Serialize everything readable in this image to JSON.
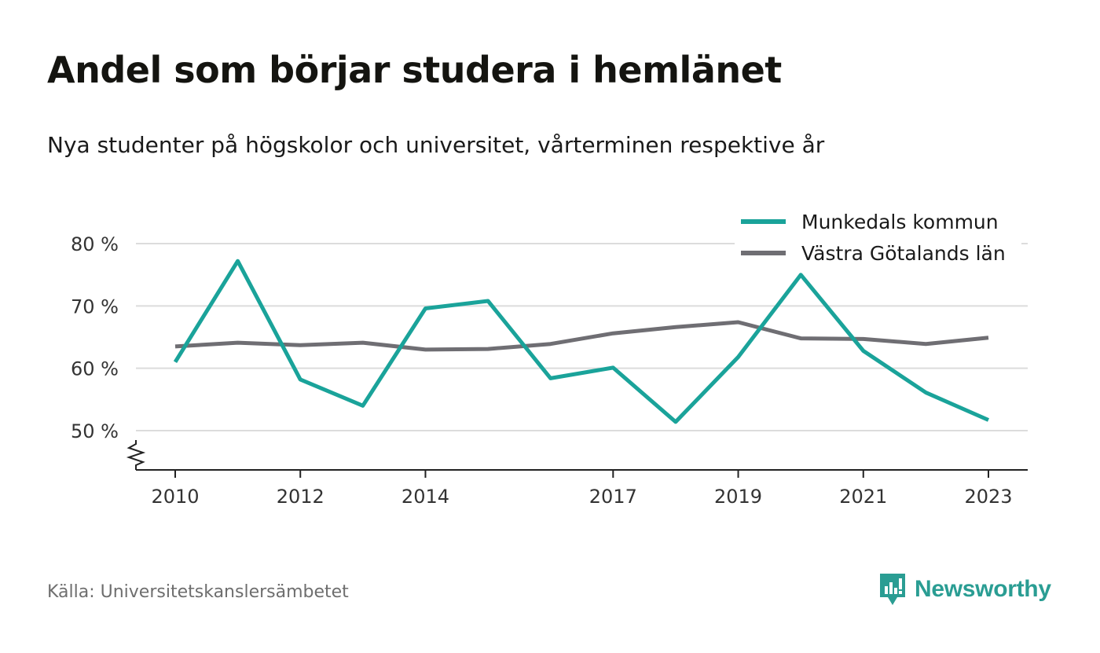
{
  "header": {
    "title": "Andel som börjar studera i hemlänet",
    "subtitle": "Nya studenter på högskolor och universitet, vårterminen respektive år"
  },
  "footer": {
    "source": "Källa: Universitetskanslersämbetet",
    "brand": "Newsworthy"
  },
  "colors": {
    "accent": "#1aa39a",
    "secondary": "#6f6e73",
    "grid": "#dcdcdc",
    "brand": "#2a9d93"
  },
  "chart_data": {
    "type": "line",
    "x": [
      2010,
      2011,
      2012,
      2013,
      2014,
      2015,
      2016,
      2017,
      2018,
      2019,
      2020,
      2021,
      2022,
      2023
    ],
    "xticks": [
      "2010",
      "2012",
      "2014",
      "2017",
      "2019",
      "2021",
      "2023"
    ],
    "xlim": [
      2010,
      2023
    ],
    "yticks": [
      50,
      60,
      70,
      80
    ],
    "ytick_labels": [
      "50 %",
      "60 %",
      "70 %",
      "80 %"
    ],
    "ylim": [
      44,
      82
    ],
    "grid": true,
    "y_axis_break": true,
    "legend_position": "top-right",
    "series": [
      {
        "name": "Munkedals kommun",
        "color": "#1aa39a",
        "values": [
          61,
          77.2,
          58.2,
          54,
          69.6,
          70.8,
          58.4,
          60.1,
          51.4,
          61.8,
          75,
          62.8,
          56.1,
          51.7
        ]
      },
      {
        "name": "Västra Götalands län",
        "color": "#6f6e73",
        "values": [
          63.5,
          64.1,
          63.7,
          64.1,
          63,
          63.1,
          63.9,
          65.6,
          66.6,
          67.4,
          64.8,
          64.7,
          63.9,
          64.9
        ]
      }
    ]
  }
}
